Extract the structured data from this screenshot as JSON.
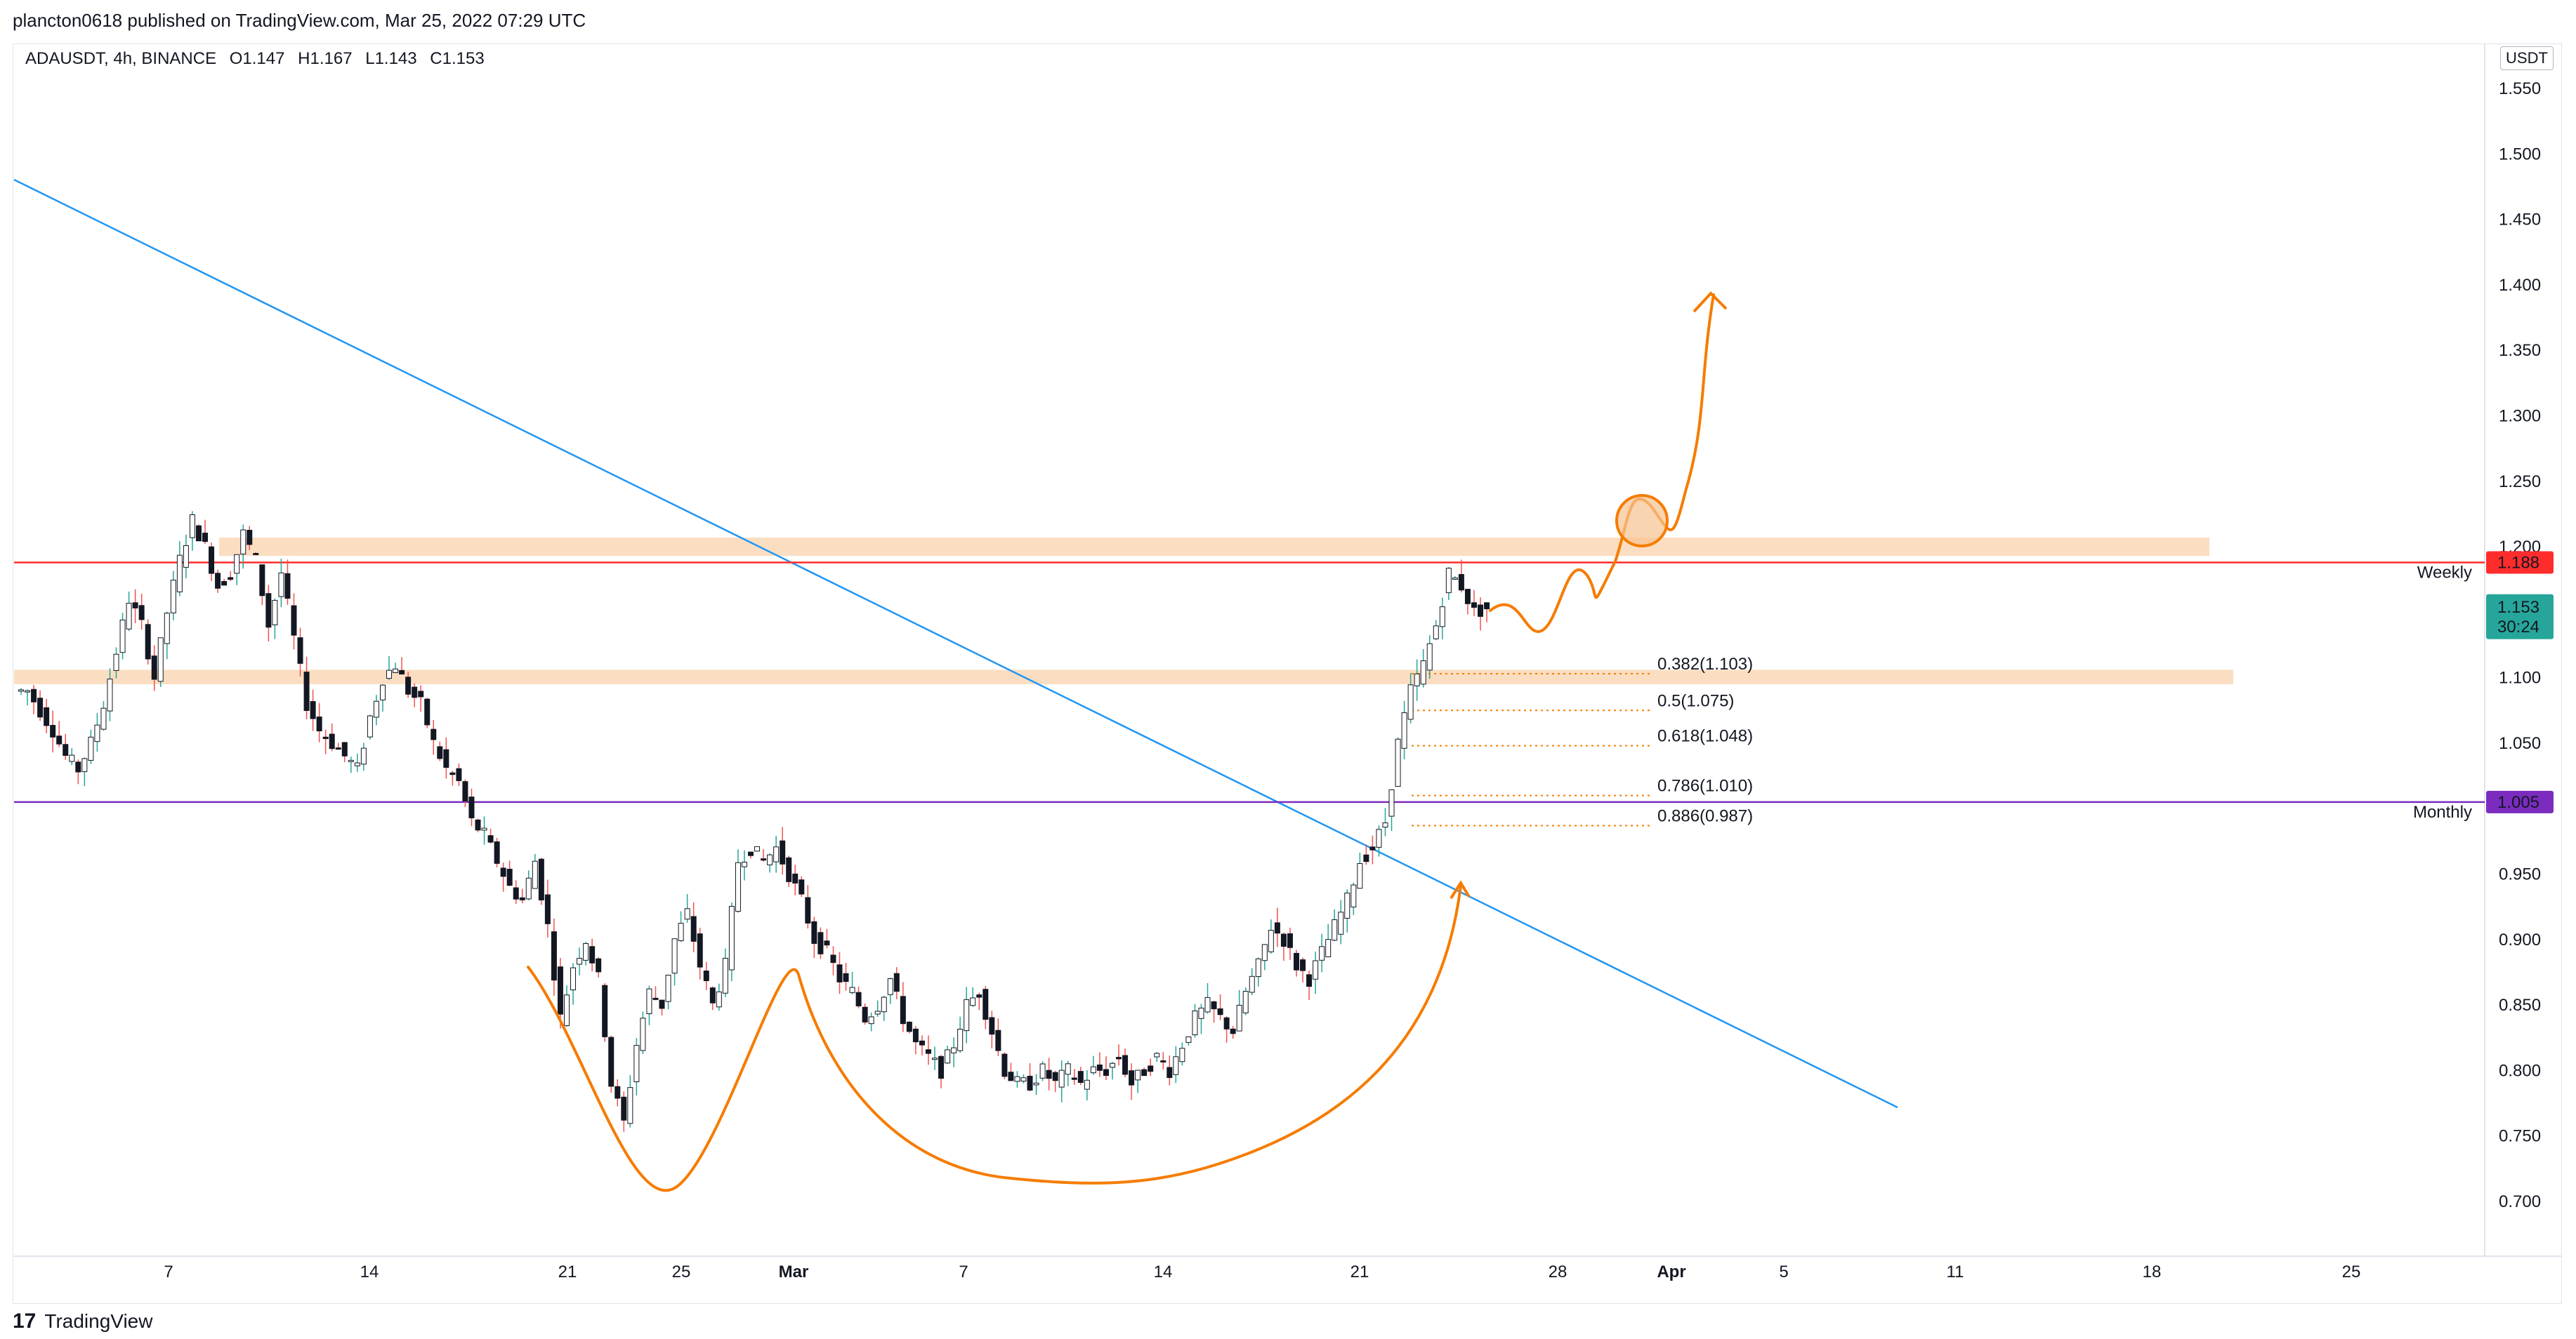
{
  "header": {
    "publisher_line": "plancton0618 published on TradingView.com, Mar 25, 2022 07:29 UTC"
  },
  "symbol": {
    "name": "ADAUSDT, 4h, BINANCE",
    "open": "O1.147",
    "high": "H1.167",
    "low": "L1.143",
    "close": "C1.153"
  },
  "footer": {
    "logo": "17",
    "brand": "TradingView"
  },
  "colors": {
    "up": "#26a69a",
    "down": "#ef5350",
    "candle_body": "#131722",
    "trendline": "#2196f3",
    "weekly": "#ff2c2c",
    "monthly": "#7b2cbf",
    "zone": "#f7c28e",
    "drawing": "#f57c00",
    "current": "#26a69a"
  },
  "chart_data": {
    "type": "candlestick",
    "price_axis": {
      "unit": "USDT",
      "ticks": [
        "1.550",
        "1.500",
        "1.450",
        "1.400",
        "1.350",
        "1.300",
        "1.250",
        "1.200",
        "1.100",
        "1.050",
        "0.950",
        "0.900",
        "0.850",
        "0.800",
        "0.750",
        "0.700"
      ],
      "range": [
        0.67,
        1.59
      ]
    },
    "time_axis": {
      "ticks": [
        "7",
        "14",
        "21",
        "25",
        "Mar",
        "7",
        "14",
        "21",
        "28",
        "Apr",
        "5",
        "11",
        "18",
        "25"
      ]
    },
    "levels": [
      {
        "name": "Weekly",
        "value": 1.188,
        "label": "1.188"
      },
      {
        "name": "Monthly",
        "value": 1.005,
        "label": "1.005"
      }
    ],
    "current_price": {
      "value": 1.153,
      "label": "1.153",
      "countdown": "30:24"
    },
    "fib_levels": [
      {
        "label": "0.382(1.103)",
        "value": 1.103
      },
      {
        "label": "0.5(1.075)",
        "value": 1.075
      },
      {
        "label": "0.618(1.048)",
        "value": 1.048
      },
      {
        "label": "0.786(1.010)",
        "value": 1.01
      },
      {
        "label": "0.886(0.987)",
        "value": 0.987
      }
    ],
    "zones": [
      {
        "low": 1.193,
        "high": 1.207
      },
      {
        "low": 1.095,
        "high": 1.106
      }
    ],
    "close_path": [
      1.09,
      1.075,
      1.06,
      1.04,
      1.03,
      1.05,
      1.08,
      1.12,
      1.16,
      1.14,
      1.1,
      1.15,
      1.19,
      1.22,
      1.2,
      1.17,
      1.18,
      1.21,
      1.19,
      1.14,
      1.18,
      1.13,
      1.08,
      1.06,
      1.05,
      1.04,
      1.03,
      1.07,
      1.1,
      1.11,
      1.09,
      1.08,
      1.05,
      1.03,
      1.02,
      0.99,
      0.98,
      0.96,
      0.94,
      0.93,
      0.96,
      0.91,
      0.84,
      0.88,
      0.9,
      0.87,
      0.79,
      0.76,
      0.82,
      0.86,
      0.85,
      0.9,
      0.92,
      0.88,
      0.85,
      0.88,
      0.96,
      0.97,
      0.96,
      0.97,
      0.95,
      0.93,
      0.9,
      0.89,
      0.87,
      0.86,
      0.84,
      0.85,
      0.87,
      0.84,
      0.82,
      0.81,
      0.8,
      0.82,
      0.85,
      0.86,
      0.83,
      0.8,
      0.79,
      0.79,
      0.8,
      0.79,
      0.8,
      0.79,
      0.8,
      0.8,
      0.81,
      0.79,
      0.8,
      0.81,
      0.8,
      0.82,
      0.84,
      0.85,
      0.84,
      0.83,
      0.86,
      0.88,
      0.91,
      0.9,
      0.88,
      0.87,
      0.89,
      0.91,
      0.93,
      0.96,
      0.97,
      0.99,
      1.05,
      1.09,
      1.11,
      1.14,
      1.18,
      1.17,
      1.15,
      1.153
    ]
  }
}
